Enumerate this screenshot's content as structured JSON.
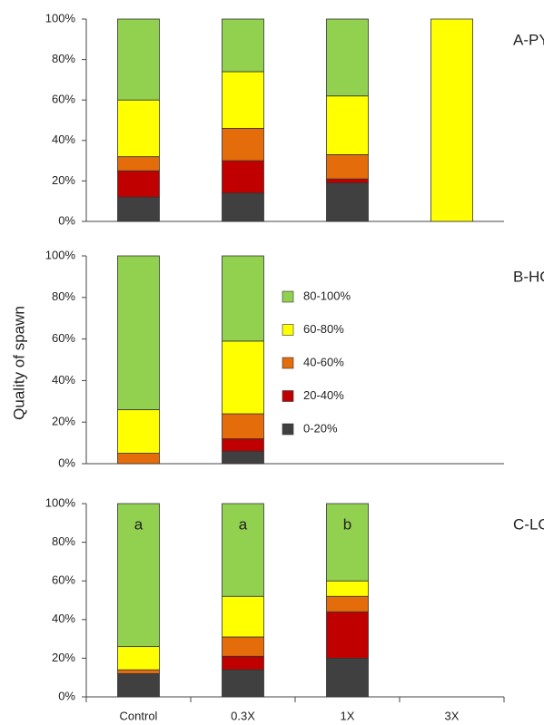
{
  "chart_data": [
    {
      "type": "bar",
      "stacked": true,
      "title": "A-PY",
      "ylim": [
        0,
        100
      ],
      "yticks": [
        {
          "value": 0,
          "label": "0%"
        },
        {
          "value": 20,
          "label": "20%"
        },
        {
          "value": 40,
          "label": "40%"
        },
        {
          "value": 60,
          "label": "60%"
        },
        {
          "value": 80,
          "label": "80%"
        },
        {
          "value": 100,
          "label": "100%"
        }
      ],
      "series": [
        {
          "color": "#404040",
          "values": [
            12,
            14,
            19,
            0
          ]
        },
        {
          "color": "#c00000",
          "values": [
            13,
            16,
            2,
            0
          ]
        },
        {
          "color": "#e46c0a",
          "values": [
            7,
            16,
            12,
            0
          ]
        },
        {
          "color": "#ffff00",
          "values": [
            28,
            28,
            29,
            100
          ]
        },
        {
          "color": "#92d050",
          "values": [
            40,
            26,
            38,
            0
          ]
        }
      ]
    },
    {
      "type": "bar",
      "stacked": true,
      "title": "B-HO",
      "ylabel": "Quality of spawn",
      "ylim": [
        0,
        100
      ],
      "yticks": [
        {
          "value": 0,
          "label": "0%"
        },
        {
          "value": 20,
          "label": "20%"
        },
        {
          "value": 40,
          "label": "40%"
        },
        {
          "value": 60,
          "label": "60%"
        },
        {
          "value": 80,
          "label": "80%"
        },
        {
          "value": 100,
          "label": "100%"
        }
      ],
      "series": [
        {
          "name": "0-20%",
          "color": "#404040",
          "values": [
            0,
            6,
            null,
            null
          ]
        },
        {
          "name": "20-40%",
          "color": "#c00000",
          "values": [
            0,
            6,
            null,
            null
          ]
        },
        {
          "name": "40-60%",
          "color": "#e46c0a",
          "values": [
            5,
            12,
            null,
            null
          ]
        },
        {
          "name": "60-80%",
          "color": "#ffff00",
          "values": [
            21,
            35,
            null,
            null
          ]
        },
        {
          "name": "80-100%",
          "color": "#92d050",
          "values": [
            74,
            41,
            null,
            null
          ]
        }
      ]
    },
    {
      "type": "bar",
      "stacked": true,
      "title": "C-LO",
      "categories": [
        "Control",
        "0.3X",
        "1X",
        "3X"
      ],
      "annotations": [
        "a",
        "a",
        "b"
      ],
      "ylim": [
        0,
        100
      ],
      "yticks": [
        {
          "value": 0,
          "label": "0%"
        },
        {
          "value": 20,
          "label": "20%"
        },
        {
          "value": 40,
          "label": "40%"
        },
        {
          "value": 60,
          "label": "60%"
        },
        {
          "value": 80,
          "label": "80%"
        },
        {
          "value": 100,
          "label": "100%"
        }
      ],
      "series": [
        {
          "color": "#404040",
          "values": [
            12,
            14,
            20,
            null
          ]
        },
        {
          "color": "#c00000",
          "values": [
            0,
            7,
            24,
            null
          ]
        },
        {
          "color": "#e46c0a",
          "values": [
            2,
            10,
            8,
            null
          ]
        },
        {
          "color": "#ffff00",
          "values": [
            12,
            21,
            8,
            null
          ]
        },
        {
          "color": "#92d050",
          "values": [
            74,
            48,
            40,
            null
          ]
        }
      ]
    }
  ]
}
